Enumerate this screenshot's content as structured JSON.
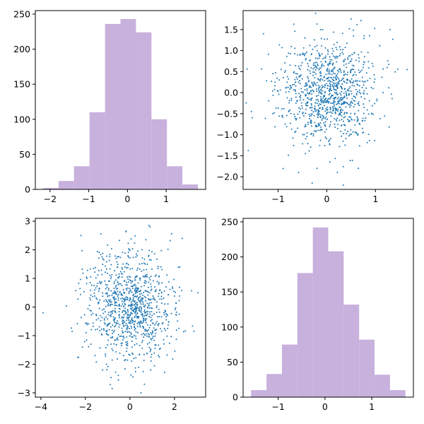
{
  "figure": {
    "hist_color": "#c8b1dd",
    "point_color": "#1f77b4",
    "frame_color": "#000000"
  },
  "chart_data": [
    {
      "type": "bar",
      "subtype": "histogram",
      "title": "",
      "xlabel": "",
      "ylabel": "",
      "bin_edges": [
        -2.18,
        -1.78,
        -1.38,
        -0.98,
        -0.58,
        -0.18,
        0.22,
        0.62,
        1.02,
        1.42,
        1.82
      ],
      "values": [
        2,
        12,
        33,
        110,
        236,
        243,
        224,
        100,
        33,
        7
      ],
      "xlim": [
        -2.38,
        2.02
      ],
      "ylim": [
        0,
        255
      ],
      "xticks": [
        -2,
        -1,
        0,
        1
      ],
      "yticks": [
        0,
        50,
        100,
        150,
        200,
        250
      ],
      "grid": false
    },
    {
      "type": "scatter",
      "title": "",
      "xlabel": "",
      "ylabel": "",
      "n_points": 1000,
      "x_mean": 0.0,
      "x_std": 0.5,
      "y_mean": 0.0,
      "y_std": 0.6,
      "x": [
        -1.3,
        1.3,
        -0.3,
        0.5,
        1.65,
        -1.55,
        -0.2,
        -0.45,
        0.65,
        0.55
      ],
      "y": [
        1.4,
        1.5,
        -2.15,
        1.75,
        0.55,
        -0.45,
        -1.8,
        1.3,
        -1.8,
        1.35
      ],
      "xlim": [
        -1.72,
        1.78
      ],
      "ylim": [
        -2.3,
        1.95
      ],
      "xticks": [
        -1,
        0,
        1
      ],
      "yticks": [
        -2.0,
        -1.5,
        -1.0,
        -0.5,
        0.0,
        0.5,
        1.0,
        1.5
      ],
      "grid": false
    },
    {
      "type": "scatter",
      "title": "",
      "xlabel": "",
      "ylabel": "",
      "n_points": 1000,
      "x_mean": 0.0,
      "x_std": 1.0,
      "y_mean": 0.0,
      "y_std": 1.0,
      "x": [
        -3.9,
        3.05,
        -0.8,
        0.5,
        0.85,
        -2.2,
        2.35,
        -1.05,
        0.65,
        0.9
      ],
      "y": [
        -0.2,
        0.5,
        -2.85,
        -3.0,
        2.85,
        2.5,
        2.4,
        -2.0,
        -2.7,
        2.8
      ],
      "xlim": [
        -4.25,
        3.4
      ],
      "ylim": [
        -3.15,
        3.1
      ],
      "xticks": [
        -4,
        -2,
        0,
        2
      ],
      "yticks": [
        -3,
        -2,
        -1,
        0,
        1,
        2,
        3
      ],
      "grid": false
    },
    {
      "type": "bar",
      "subtype": "histogram",
      "title": "",
      "xlabel": "",
      "ylabel": "",
      "bin_edges": [
        -1.58,
        -1.25,
        -0.92,
        -0.59,
        -0.26,
        0.07,
        0.4,
        0.73,
        1.06,
        1.39,
        1.72
      ],
      "values": [
        10,
        33,
        75,
        177,
        242,
        208,
        132,
        82,
        32,
        10
      ],
      "xlim": [
        -1.75,
        1.89
      ],
      "ylim": [
        0,
        255
      ],
      "xticks": [
        -1,
        0,
        1
      ],
      "yticks": [
        0,
        50,
        100,
        150,
        200,
        250
      ],
      "grid": false
    }
  ]
}
